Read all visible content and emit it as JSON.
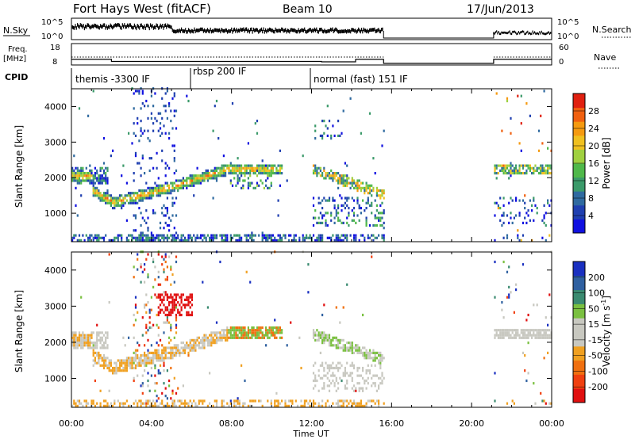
{
  "header": {
    "title": "Fort Hays West (fitACF)",
    "beam": "Beam 10",
    "date": "17/Jun/2013"
  },
  "strips": {
    "nsky_label": "N.Sky",
    "nsky_ticks": [
      "10^5",
      "10^0"
    ],
    "nsearch_label": "N.Search",
    "nsearch_ticks": [
      "10^5",
      "10^0"
    ],
    "freq_label": "Freq.",
    "freq_unit": "[MHz]",
    "freq_ticks": [
      "18",
      "8"
    ],
    "nave_label": "Nave",
    "nave_ticks": [
      "60",
      "0"
    ],
    "cpid_label": "CPID",
    "cpid_segments": [
      {
        "label": "themis -3300 IF",
        "start_h": 0,
        "end_h": 6
      },
      {
        "label": "rbsp 200 IF",
        "start_h": 6,
        "end_h": 12
      },
      {
        "label": "normal (fast) 151 IF",
        "start_h": 12,
        "end_h": 15.6
      }
    ]
  },
  "chart_data": [
    {
      "type": "heatmap",
      "ylabel": "Slant Range [km]",
      "xlabel": "Time UT",
      "x_ticks": [
        "00:00",
        "04:00",
        "08:00",
        "12:00",
        "16:00",
        "20:00",
        "00:00"
      ],
      "y_ticks": [
        1000,
        2000,
        3000,
        4000
      ],
      "ylim": [
        200,
        4500
      ],
      "colorbar": {
        "label": "Power [dB]",
        "ticks": [
          4,
          8,
          12,
          16,
          20,
          24,
          28
        ],
        "colors": [
          "#1010e0",
          "#1f3fb0",
          "#2f6aa0",
          "#3b9a6a",
          "#4fb84a",
          "#a0d040",
          "#f0c020",
          "#f59a10",
          "#f06010",
          "#e02010"
        ]
      }
    },
    {
      "type": "heatmap",
      "ylabel": "Slant Range [km]",
      "xlabel": "Time UT",
      "x_ticks": [
        "00:00",
        "04:00",
        "08:00",
        "12:00",
        "16:00",
        "20:00",
        "00:00"
      ],
      "y_ticks": [
        1000,
        2000,
        3000,
        4000
      ],
      "ylim": [
        200,
        4500
      ],
      "colorbar": {
        "label": "Velocity [m s-1]",
        "ticks": [
          200,
          100,
          50,
          15,
          -15,
          -50,
          -100,
          -200
        ],
        "colors": [
          "#1a30c0",
          "#2f60a0",
          "#3a8a70",
          "#7ac040",
          "#c8c8c0",
          "#c8c8c0",
          "#f0a020",
          "#f07010",
          "#f04010",
          "#e01010"
        ]
      }
    }
  ],
  "xlabel": "Time UT"
}
